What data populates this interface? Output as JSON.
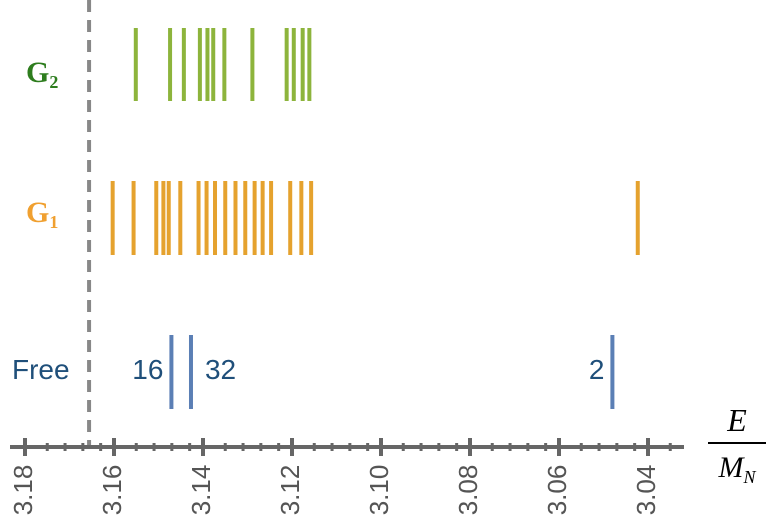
{
  "chart_data": {
    "type": "scatter",
    "x_axis": {
      "label_numerator": "E",
      "label_denominator": "M",
      "label_denominator_sub": "N",
      "range": [
        3.185,
        3.027
      ],
      "reversed": true,
      "major_ticks": [
        3.18,
        3.16,
        3.14,
        3.12,
        3.1,
        3.08,
        3.06,
        3.04
      ],
      "tick_labels": [
        "3.18",
        "3.16",
        "3.14",
        "3.12",
        "3.10",
        "3.08",
        "3.06",
        "3.04"
      ],
      "minor_step": 0.004
    },
    "threshold": {
      "value": 3.1656,
      "style": "dashed",
      "color": "#888888"
    },
    "grid": false,
    "rows": [
      {
        "name": "G",
        "name_sub": "2",
        "color": "#8db43c",
        "label_color": "#2e7d1e",
        "values": [
          3.1551,
          3.1474,
          3.1443,
          3.1407,
          3.139,
          3.1377,
          3.1352,
          3.1289,
          3.1212,
          3.1196,
          3.1176,
          3.1161
        ]
      },
      {
        "name": "G",
        "name_sub": "1",
        "color": "#e5a22e",
        "label_color": "#f0a030",
        "values": [
          3.1603,
          3.1556,
          3.1505,
          3.1489,
          3.1477,
          3.1451,
          3.141,
          3.1392,
          3.1373,
          3.135,
          3.1327,
          3.1305,
          3.1284,
          3.1266,
          3.1247,
          3.1204,
          3.1179,
          3.1157,
          3.0423
        ]
      },
      {
        "name": "Free",
        "color": "#5b7fb5",
        "label_color": "#1f4f7a",
        "values": [
          3.1471,
          3.1427,
          3.048
        ],
        "annotations": [
          {
            "text": "16",
            "anchor": "left-of",
            "near": 3.1471
          },
          {
            "text": "32",
            "anchor": "right-of",
            "near": 3.1427
          },
          {
            "text": "2",
            "anchor": "left-of",
            "near": 3.048
          }
        ]
      }
    ]
  }
}
